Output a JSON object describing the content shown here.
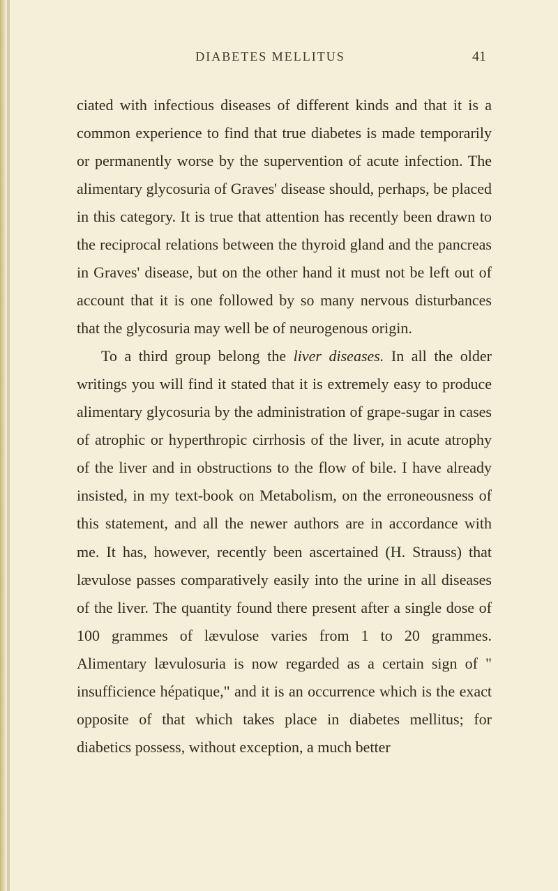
{
  "page": {
    "running_head": "DIABETES MELLITUS",
    "page_number": "41",
    "background_color": "#f5eed8",
    "text_color": "#2e2c1e",
    "font_family": "Georgia, serif",
    "body_fontsize": 22,
    "line_height": 1.82,
    "header_fontsize": 18,
    "paragraphs": [
      {
        "indent": false,
        "segments": [
          {
            "text": "ciated with infectious diseases of different kinds and that it is a common experience to find that true diabetes is made temporarily or permanently worse by the supervention of acute infection. The alimentary glycosuria of Graves' disease should, perhaps, be placed in this category. It is true that attention has recently been drawn to the reciprocal relations between the thyroid gland and the pancreas in Graves' disease, but on the other hand it must not be left out of account that it is one followed by so many nervous disturbances that the glycosuria may well be of neurogenous origin.",
            "italic": false
          }
        ]
      },
      {
        "indent": true,
        "segments": [
          {
            "text": "To a third group belong the ",
            "italic": false
          },
          {
            "text": "liver diseases.",
            "italic": true
          },
          {
            "text": " In all the older writings you will find it stated that it is extremely easy to produce alimentary glycosuria by the administration of grape-sugar in cases of atrophic or hyperthropic cirrhosis of the liver, in acute atrophy of the liver and in obstructions to the flow of bile. I have already insisted, in my text-book on Metabolism, on the erroneousness of this statement, and all the newer authors are in accordance with me. It has, however, recently been ascertained (H. Strauss) that lævulose passes comparatively easily into the urine in all diseases of the liver. The quantity found there present after a single dose of 100 grammes of lævulose varies from 1 to 20 grammes. Alimentary lævulosuria is now regarded as a certain sign of \" insufficience hépatique,\" and it is an occurrence which is the exact opposite of that which takes place in diabetes mellitus; for diabetics possess, without exception, a much better",
            "italic": false
          }
        ]
      }
    ]
  }
}
